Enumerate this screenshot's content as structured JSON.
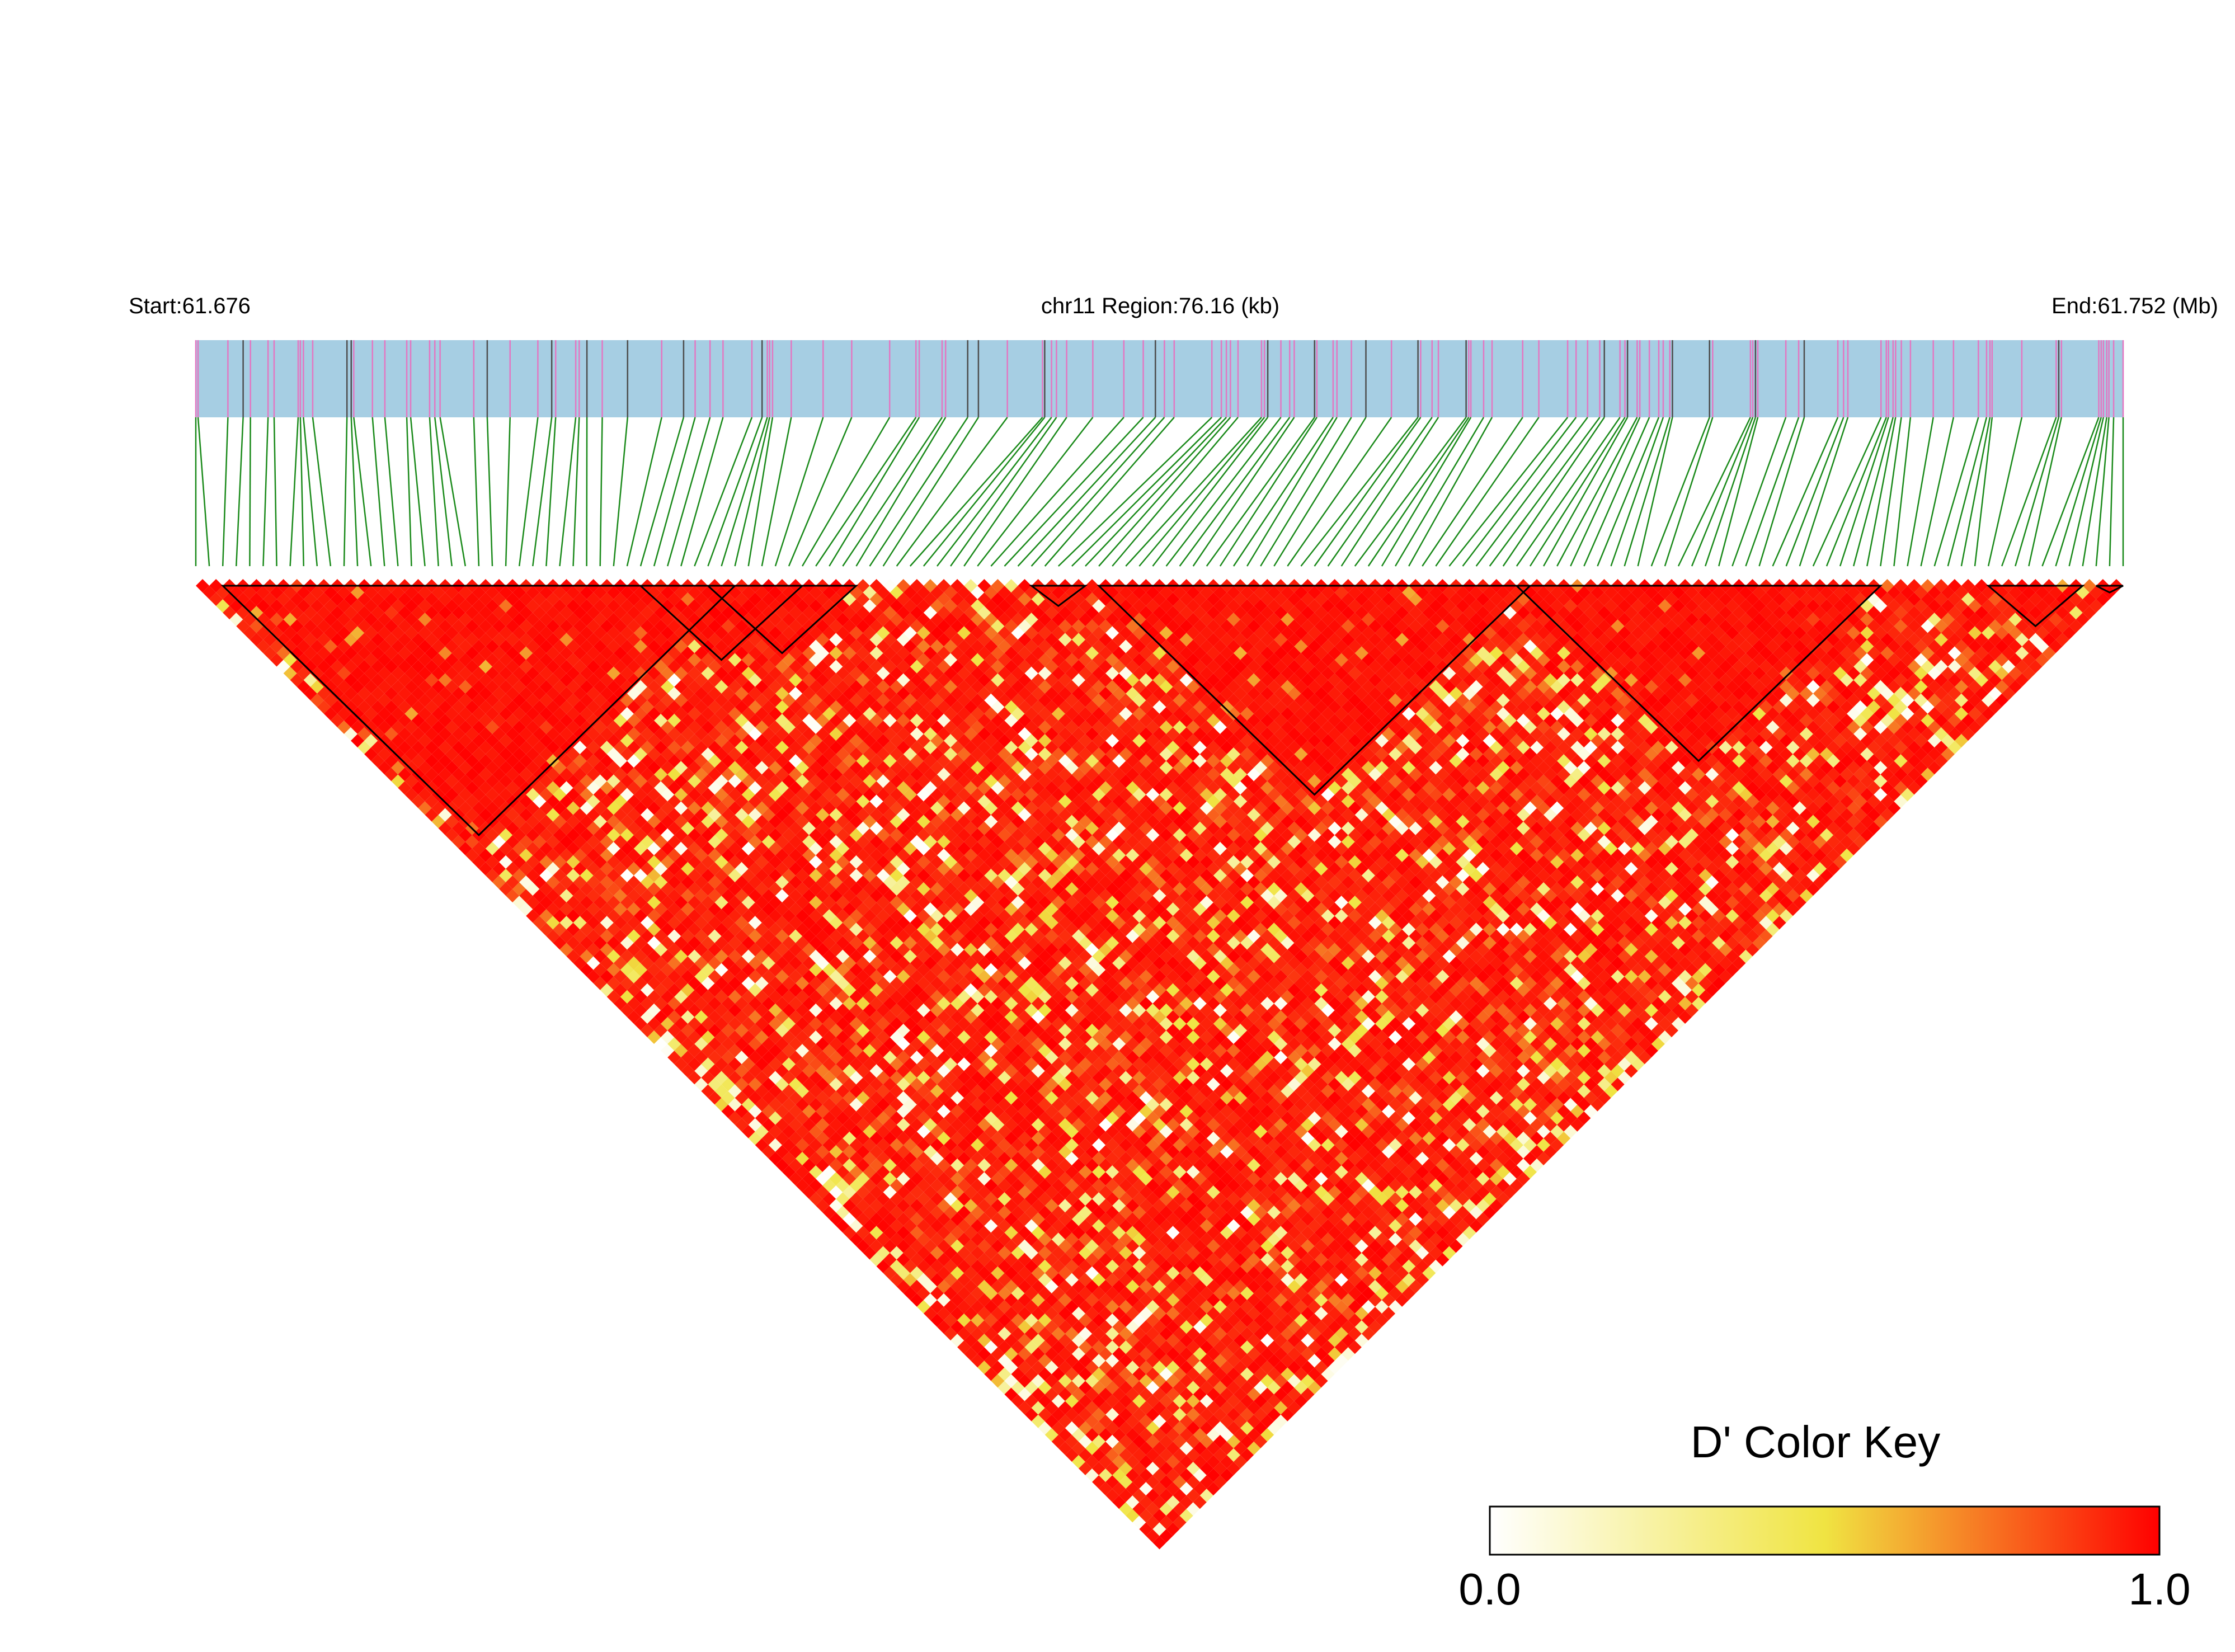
{
  "header": {
    "start_label": "Start:61.676",
    "region_label": "chr11 Region:76.16 (kb)",
    "end_label": "End:61.752 (Mb)"
  },
  "colors": {
    "track_fill": "#a6cee3",
    "snp_line_pink": "#e377c2",
    "snp_line_dark": "#4d4d4d",
    "connector": "#1a8a1a",
    "ld_low": "#ffffff",
    "ld_mid": "#f0e442",
    "ld_high": "#ff0000",
    "block_outline": "#000000"
  },
  "chart_data": {
    "type": "heatmap",
    "title": "",
    "chromosome": "chr11",
    "region_start_mb": 61.676,
    "region_end_mb": 61.752,
    "region_length_kb": 76.16,
    "n_snps": 144,
    "metric": "D'",
    "value_range": [
      0,
      1
    ],
    "color_scale": [
      "#ffffff",
      "#f0e442",
      "#ff0000"
    ],
    "ld_blocks_snp_index": [
      [
        2,
        40
      ],
      [
        33,
        45
      ],
      [
        38,
        49
      ],
      [
        62,
        66
      ],
      [
        67,
        99
      ],
      [
        98,
        125
      ],
      [
        133,
        140
      ],
      [
        141,
        143
      ]
    ],
    "legend": {
      "title": "D' Color Key",
      "min_label": "0.0",
      "max_label": "1.0"
    }
  }
}
